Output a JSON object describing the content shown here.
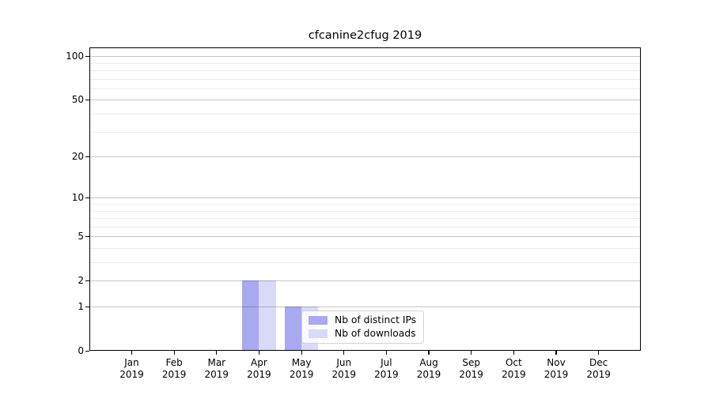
{
  "chart_data": {
    "type": "bar",
    "title": "cfcanine2cfug 2019",
    "categories": [
      "Jan",
      "Feb",
      "Mar",
      "Apr",
      "May",
      "Jun",
      "Jul",
      "Aug",
      "Sep",
      "Oct",
      "Nov",
      "Dec"
    ],
    "x_year_label": "2019",
    "series": [
      {
        "name": "Nb of distinct IPs",
        "color": "#a9a9ef",
        "values": [
          0,
          0,
          0,
          2,
          1,
          0,
          0,
          0,
          0,
          0,
          0,
          0
        ]
      },
      {
        "name": "Nb of downloads",
        "color": "#d9d9f8",
        "values": [
          0,
          0,
          0,
          2,
          1,
          0,
          0,
          0,
          0,
          0,
          0,
          0
        ]
      }
    ],
    "yaxis": {
      "scale": "log1p",
      "tick_labels": [
        0,
        1,
        2,
        5,
        10,
        20,
        50,
        100
      ],
      "minor_gridlines": [
        3,
        4,
        6,
        7,
        8,
        9,
        30,
        40,
        60,
        70,
        80,
        90
      ],
      "ylim": [
        0,
        115
      ]
    },
    "grid": true,
    "legend_position": "lower-center",
    "style": {
      "spine_color": "#000000",
      "major_grid_color": "#c8c8c8",
      "minor_grid_color": "#ebebeb",
      "text_color": "#000000",
      "background": "#ffffff"
    }
  }
}
